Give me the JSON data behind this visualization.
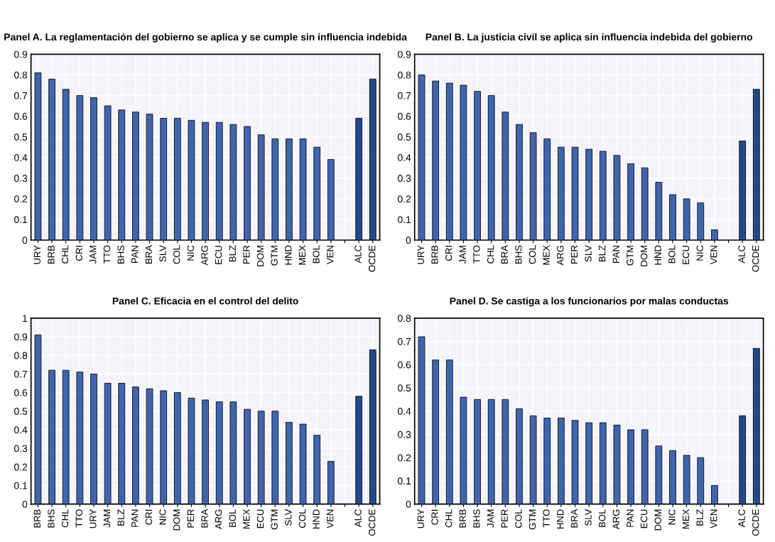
{
  "chart_data": [
    {
      "type": "bar",
      "title": "Panel A. La reglamentación del gobierno se aplica y se cumple sin influencia indebida",
      "categories": [
        "URY",
        "BRB",
        "CHL",
        "CRI",
        "JAM",
        "TTO",
        "BHS",
        "PAN",
        "BRA",
        "SLV",
        "COL",
        "NIC",
        "ARG",
        "ECU",
        "BLZ",
        "PER",
        "DOM",
        "GTM",
        "HND",
        "MEX",
        "BOL",
        "VEN",
        null,
        "ALC",
        "OCDE"
      ],
      "values": [
        0.81,
        0.78,
        0.73,
        0.7,
        0.69,
        0.65,
        0.63,
        0.62,
        0.61,
        0.59,
        0.59,
        0.58,
        0.57,
        0.57,
        0.56,
        0.55,
        0.51,
        0.49,
        0.49,
        0.49,
        0.45,
        0.39,
        null,
        0.59,
        0.78
      ],
      "colors": [
        "#4065ae",
        "#4065ae",
        "#4065ae",
        "#4065ae",
        "#4065ae",
        "#4065ae",
        "#4065ae",
        "#4065ae",
        "#4065ae",
        "#4065ae",
        "#4065ae",
        "#4065ae",
        "#4065ae",
        "#4065ae",
        "#4065ae",
        "#4065ae",
        "#4065ae",
        "#4065ae",
        "#4065ae",
        "#4065ae",
        "#4065ae",
        "#4065ae",
        "#4065ae",
        "#214a87",
        "#214a87"
      ],
      "ylim": [
        0,
        0.9
      ],
      "yticks": [
        0,
        0.1,
        0.2,
        0.3,
        0.4,
        0.5,
        0.6,
        0.7,
        0.8,
        0.9
      ],
      "grid": true
    },
    {
      "type": "bar",
      "title": "Panel B. La justicia civil se aplica sin influencia indebida del gobierno",
      "categories": [
        "URY",
        "BRB",
        "CRI",
        "JAM",
        "TTO",
        "CHL",
        "BRA",
        "BHS",
        "COL",
        "MEX",
        "ARG",
        "PER",
        "SLV",
        "BLZ",
        "PAN",
        "GTM",
        "DOM",
        "HND",
        "BOL",
        "ECU",
        "NIC",
        "VEN",
        null,
        "ALC",
        "OCDE"
      ],
      "values": [
        0.8,
        0.77,
        0.76,
        0.75,
        0.72,
        0.7,
        0.62,
        0.56,
        0.52,
        0.49,
        0.45,
        0.45,
        0.44,
        0.43,
        0.41,
        0.37,
        0.35,
        0.28,
        0.22,
        0.2,
        0.18,
        0.05,
        null,
        0.48,
        0.73
      ],
      "colors": [
        "#4065ae",
        "#4065ae",
        "#4065ae",
        "#4065ae",
        "#4065ae",
        "#4065ae",
        "#4065ae",
        "#4065ae",
        "#4065ae",
        "#4065ae",
        "#4065ae",
        "#4065ae",
        "#4065ae",
        "#4065ae",
        "#4065ae",
        "#4065ae",
        "#4065ae",
        "#4065ae",
        "#4065ae",
        "#4065ae",
        "#4065ae",
        "#4065ae",
        "#4065ae",
        "#214a87",
        "#214a87"
      ],
      "ylim": [
        0,
        0.9
      ],
      "yticks": [
        0,
        0.1,
        0.2,
        0.3,
        0.4,
        0.5,
        0.6,
        0.7,
        0.8,
        0.9
      ],
      "grid": true
    },
    {
      "type": "bar",
      "title": "Panel C. Eficacia en el control del delito",
      "categories": [
        "BRB",
        "BHS",
        "CHL",
        "TTO",
        "URY",
        "JAM",
        "BLZ",
        "PAN",
        "CRI",
        "NIC",
        "DOM",
        "PER",
        "BRA",
        "ARG",
        "BOL",
        "MEX",
        "ECU",
        "GTM",
        "SLV",
        "COL",
        "HND",
        "VEN",
        null,
        "ALC",
        "OCDE"
      ],
      "values": [
        0.91,
        0.72,
        0.72,
        0.71,
        0.7,
        0.65,
        0.65,
        0.63,
        0.62,
        0.61,
        0.6,
        0.57,
        0.56,
        0.55,
        0.55,
        0.51,
        0.5,
        0.5,
        0.44,
        0.43,
        0.37,
        0.23,
        null,
        0.58,
        0.83
      ],
      "colors": [
        "#4065ae",
        "#4065ae",
        "#4065ae",
        "#4065ae",
        "#4065ae",
        "#4065ae",
        "#4065ae",
        "#4065ae",
        "#4065ae",
        "#4065ae",
        "#4065ae",
        "#4065ae",
        "#4065ae",
        "#4065ae",
        "#4065ae",
        "#4065ae",
        "#4065ae",
        "#4065ae",
        "#4065ae",
        "#4065ae",
        "#4065ae",
        "#4065ae",
        "#4065ae",
        "#214a87",
        "#214a87"
      ],
      "ylim": [
        0,
        1
      ],
      "yticks": [
        0,
        0.1,
        0.2,
        0.3,
        0.4,
        0.5,
        0.6,
        0.7,
        0.8,
        0.9,
        1
      ],
      "grid": true
    },
    {
      "type": "bar",
      "title": "Panel D. Se castiga a los funcionarios por malas conductas",
      "categories": [
        "URY",
        "CRI",
        "CHL",
        "BRB",
        "BHS",
        "JAM",
        "PER",
        "COL",
        "GTM",
        "TTO",
        "HND",
        "BRA",
        "SLV",
        "BOL",
        "ARG",
        "PAN",
        "ECU",
        "DOM",
        "NIC",
        "MEX",
        "BLZ",
        "VEN",
        null,
        "ALC",
        "OCDE"
      ],
      "values": [
        0.72,
        0.62,
        0.62,
        0.46,
        0.45,
        0.45,
        0.45,
        0.41,
        0.38,
        0.37,
        0.37,
        0.36,
        0.35,
        0.35,
        0.34,
        0.32,
        0.32,
        0.25,
        0.23,
        0.21,
        0.2,
        0.08,
        null,
        0.38,
        0.67
      ],
      "colors": [
        "#4065ae",
        "#4065ae",
        "#4065ae",
        "#4065ae",
        "#4065ae",
        "#4065ae",
        "#4065ae",
        "#4065ae",
        "#4065ae",
        "#4065ae",
        "#4065ae",
        "#4065ae",
        "#4065ae",
        "#4065ae",
        "#4065ae",
        "#4065ae",
        "#4065ae",
        "#4065ae",
        "#4065ae",
        "#4065ae",
        "#4065ae",
        "#4065ae",
        "#4065ae",
        "#214a87",
        "#214a87"
      ],
      "ylim": [
        0,
        0.8
      ],
      "yticks": [
        0,
        0.1,
        0.2,
        0.3,
        0.4,
        0.5,
        0.6,
        0.7,
        0.8
      ],
      "grid": true
    }
  ]
}
